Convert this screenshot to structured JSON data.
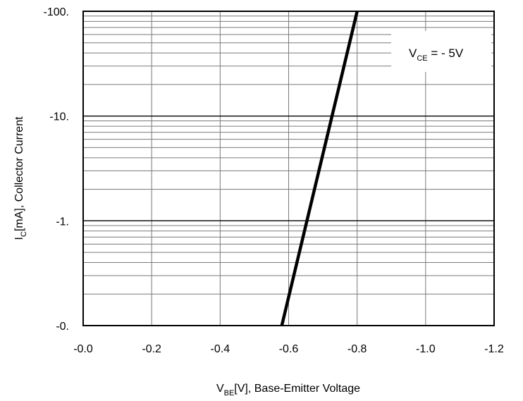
{
  "chart_data": {
    "type": "line",
    "x_axis": {
      "label": {
        "main": "V",
        "sub": "BE",
        "rest": "[V], Base-Emitter Voltage"
      },
      "ticks": [
        0.0,
        -0.2,
        -0.4,
        -0.6,
        -0.8,
        -1.0,
        -1.2
      ],
      "tick_labels": [
        "-0.0",
        "-0.2",
        "-0.4",
        "-0.6",
        "-0.8",
        "-1.0",
        "-1.2"
      ],
      "range": [
        0.0,
        -1.2
      ],
      "scale": "linear"
    },
    "y_axis": {
      "label": {
        "main": "I",
        "sub": "C",
        "rest": "[mA], Collector Current"
      },
      "ticks": [
        -0.1,
        -1,
        -10,
        -100
      ],
      "tick_labels": [
        "-0.",
        "-1.",
        "-10.",
        "-100."
      ],
      "range": [
        -0.1,
        -100
      ],
      "scale": "log"
    },
    "grid": true,
    "annotation": {
      "main": "V",
      "sub": "CE",
      "rest": " = - 5V"
    },
    "series": [
      {
        "color": "#000000",
        "points": [
          {
            "x": -0.58,
            "y": -0.1
          },
          {
            "x": -0.8,
            "y": -100
          }
        ]
      }
    ]
  }
}
